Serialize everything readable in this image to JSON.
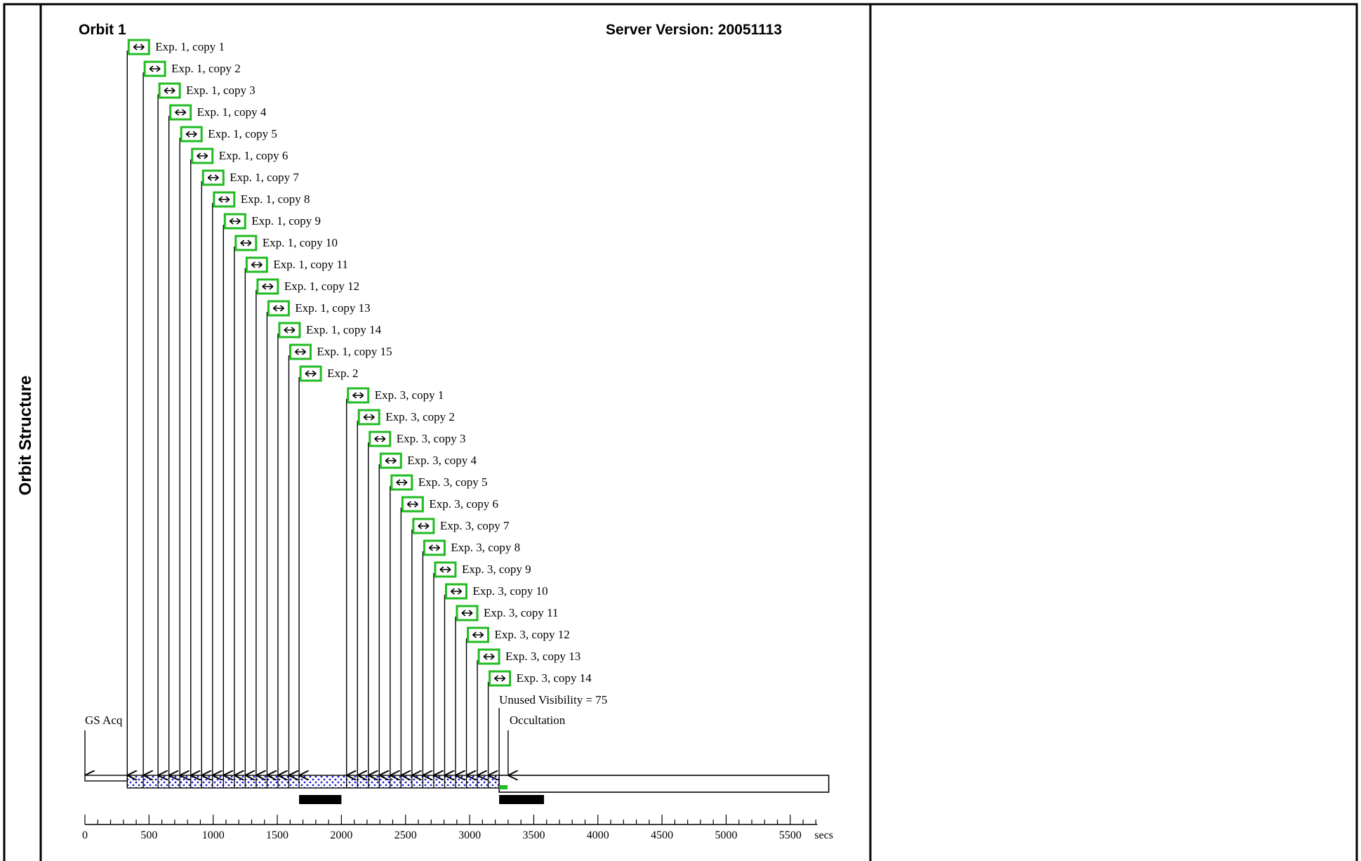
{
  "side_label": "Orbit Structure",
  "header": {
    "orbit_title": "Orbit 1",
    "server_version": "Server Version: 20051113"
  },
  "markers": {
    "gs_acq": "GS Acq",
    "occultation": "Occultation",
    "unused_visibility": "Unused Visibility = 75"
  },
  "icons": {
    "exposure": "horizontal-double-arrow-icon"
  },
  "colors": {
    "exposure_box": "#22bb22",
    "dither_fill": "#1a1acc",
    "occultation_mark": "#22bb22",
    "bar": "#000000"
  },
  "chart_data": {
    "type": "timeline",
    "xlabel": "secs",
    "xlim": [
      0,
      5700
    ],
    "ticks": [
      "0",
      "500",
      "1000",
      "1500",
      "2000",
      "2500",
      "3000",
      "3500",
      "4000",
      "4500",
      "5000",
      "5500"
    ],
    "tick_values": [
      0,
      500,
      1000,
      1500,
      2000,
      2500,
      3000,
      3500,
      4000,
      4500,
      5000,
      5500
    ],
    "gs_acq_time": 0,
    "occultation_time": 3300,
    "visibility_end": 3230,
    "orbit_end": 5800,
    "black_bars": [
      [
        1670,
        2000
      ],
      [
        3230,
        3580
      ]
    ],
    "exposures": [
      {
        "label": "Exp. 1, copy 1",
        "start": 330
      },
      {
        "label": "Exp. 1, copy 2",
        "start": 455
      },
      {
        "label": "Exp. 1, copy 3",
        "start": 570
      },
      {
        "label": "Exp. 1, copy 4",
        "start": 655
      },
      {
        "label": "Exp. 1, copy 5",
        "start": 740
      },
      {
        "label": "Exp. 1, copy 6",
        "start": 825
      },
      {
        "label": "Exp. 1, copy 7",
        "start": 910
      },
      {
        "label": "Exp. 1, copy 8",
        "start": 995
      },
      {
        "label": "Exp. 1, copy 9",
        "start": 1080
      },
      {
        "label": "Exp. 1, copy 10",
        "start": 1165
      },
      {
        "label": "Exp. 1, copy 11",
        "start": 1250
      },
      {
        "label": "Exp. 1, copy 12",
        "start": 1335
      },
      {
        "label": "Exp. 1, copy 13",
        "start": 1420
      },
      {
        "label": "Exp. 1, copy 14",
        "start": 1505
      },
      {
        "label": "Exp. 1, copy 15",
        "start": 1590
      },
      {
        "label": "Exp. 2",
        "start": 1670
      },
      {
        "label": "Exp. 3, copy 1",
        "start": 2040
      },
      {
        "label": "Exp. 3, copy 2",
        "start": 2125
      },
      {
        "label": "Exp. 3, copy 3",
        "start": 2210
      },
      {
        "label": "Exp. 3, copy 4",
        "start": 2295
      },
      {
        "label": "Exp. 3, copy 5",
        "start": 2380
      },
      {
        "label": "Exp. 3, copy 6",
        "start": 2465
      },
      {
        "label": "Exp. 3, copy 7",
        "start": 2550
      },
      {
        "label": "Exp. 3, copy 8",
        "start": 2635
      },
      {
        "label": "Exp. 3, copy 9",
        "start": 2720
      },
      {
        "label": "Exp. 3, copy 10",
        "start": 2805
      },
      {
        "label": "Exp. 3, copy 11",
        "start": 2890
      },
      {
        "label": "Exp. 3, copy 12",
        "start": 2975
      },
      {
        "label": "Exp. 3, copy 13",
        "start": 3060
      },
      {
        "label": "Exp. 3, copy 14",
        "start": 3145
      }
    ]
  }
}
